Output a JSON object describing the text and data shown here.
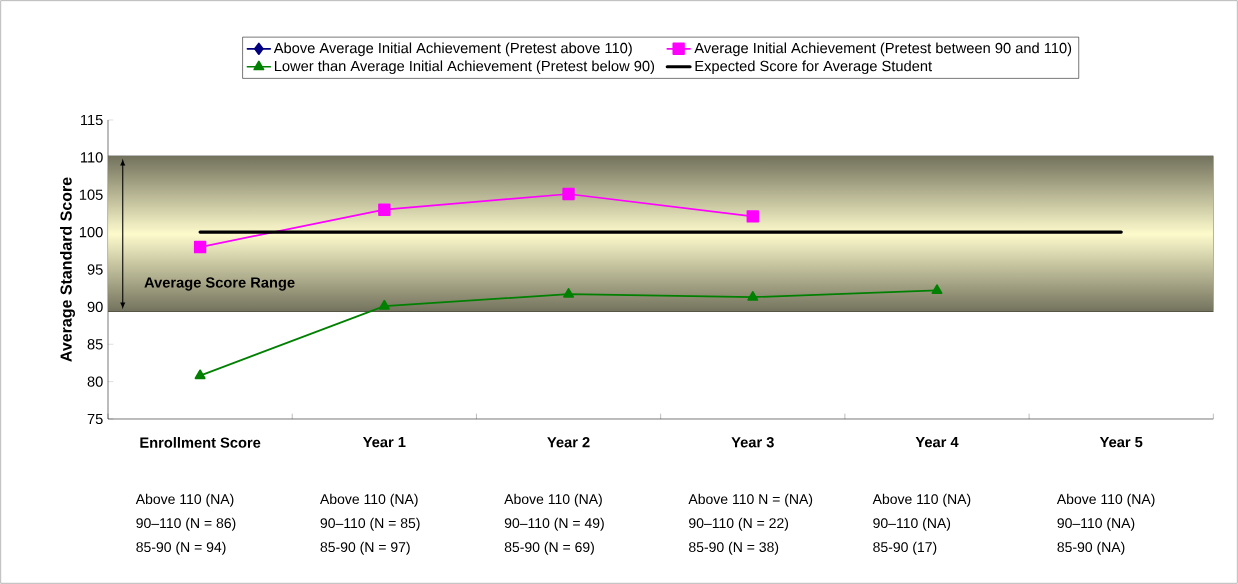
{
  "chart_data": {
    "type": "line",
    "ylabel": "Average Standard Score",
    "categories": [
      "Enrollment Score",
      "Year 1",
      "Year 2",
      "Year 3",
      "Year 4",
      "Year 5"
    ],
    "ylim": [
      75,
      115
    ],
    "yticks": [
      75,
      80,
      85,
      90,
      95,
      100,
      105,
      110,
      115
    ],
    "grid": false,
    "legend": "top",
    "line_style": "solid",
    "series": [
      {
        "name": "Above Average Initial Achievement (Pretest above 110)",
        "color": "#000080",
        "marker": "diamond",
        "values": [
          null,
          null,
          null,
          null,
          null,
          null
        ]
      },
      {
        "name": "Average Initial Achievement (Pretest between 90 and 110)",
        "color": "#ff00ff",
        "marker": "square",
        "values": [
          98,
          103,
          105.1,
          102.1,
          null,
          null
        ]
      },
      {
        "name": "Lower than Average Initial Achievement (Pretest below 90)",
        "color": "#008000",
        "marker": "triangle",
        "values": [
          80.8,
          90.1,
          91.7,
          91.3,
          92.2,
          null
        ]
      },
      {
        "name": "Expected Score for Average Student",
        "color": "#000000",
        "marker": "none",
        "values": [
          100,
          100,
          100,
          100,
          100,
          100
        ]
      }
    ],
    "bands": [
      {
        "axis": "y",
        "from": 89.3,
        "to": 110.2,
        "label": "Average Score Range",
        "color": "#fdfbcc"
      }
    ],
    "annotations": [
      "Above 110 (NA)",
      "90–110 (N = 86)",
      "85-90 (N = 94)",
      "Above 110 (NA)",
      "90–110 (N = 85)",
      "85-90 (N = 97)",
      "Above 110 (NA)",
      "90–110 (N = 49)",
      "85-90 (N = 69)",
      "Above 110 N = (NA)",
      "90–110 (N = 22)",
      "85-90 (N = 38)",
      "Above 110 (NA)",
      "90–110 (NA)",
      "85-90 (17)",
      "Above 110 (NA)",
      "90–110 (NA)",
      "85-90 (NA)"
    ]
  }
}
